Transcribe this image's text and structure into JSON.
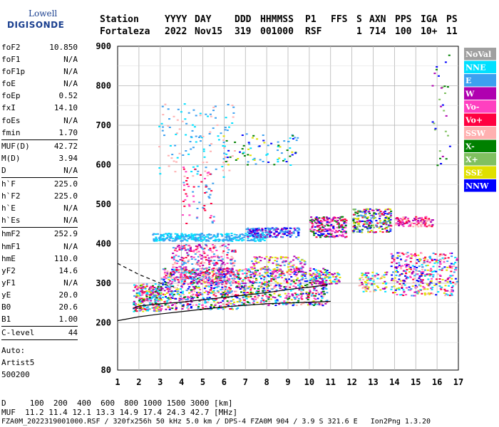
{
  "logo": {
    "line1": "Lowell",
    "line2": "DIGISONDE"
  },
  "header": {
    "labels": [
      "Station",
      "YYYY",
      "DAY",
      "DDD",
      "HHMMSS",
      "P1",
      "FFS",
      "S",
      "AXN",
      "PPS",
      "IGA",
      "PS"
    ],
    "values": [
      "Fortaleza",
      "2022",
      "Nov15",
      "319",
      "001000",
      "RSF",
      "",
      "1",
      "714",
      "100",
      "10+",
      "11"
    ]
  },
  "params": [
    [
      {
        "name": "foF2",
        "value": "10.850"
      },
      {
        "name": "foF1",
        "value": "N/A"
      },
      {
        "name": "foF1p",
        "value": "N/A"
      },
      {
        "name": "foE",
        "value": "N/A"
      },
      {
        "name": "foEp",
        "value": "0.52"
      },
      {
        "name": "fxI",
        "value": "14.10"
      },
      {
        "name": "foEs",
        "value": "N/A"
      },
      {
        "name": "fmin",
        "value": "1.70"
      }
    ],
    [
      {
        "name": "MUF(D)",
        "value": "42.72"
      },
      {
        "name": "M(D)",
        "value": "3.94"
      },
      {
        "name": "D",
        "value": "N/A"
      }
    ],
    [
      {
        "name": "h`F",
        "value": "225.0"
      },
      {
        "name": "h`F2",
        "value": "225.0"
      },
      {
        "name": "h`E",
        "value": "N/A"
      },
      {
        "name": "h`Es",
        "value": "N/A"
      }
    ],
    [
      {
        "name": "hmF2",
        "value": "252.9"
      },
      {
        "name": "hmF1",
        "value": "N/A"
      },
      {
        "name": "hmE",
        "value": "110.0"
      },
      {
        "name": "yF2",
        "value": "14.6"
      },
      {
        "name": "yF1",
        "value": "N/A"
      },
      {
        "name": "yE",
        "value": "20.0"
      },
      {
        "name": "B0",
        "value": "20.6"
      },
      {
        "name": "B1",
        "value": "1.00"
      }
    ],
    [
      {
        "name": "C-level",
        "value": "44"
      }
    ]
  ],
  "auto": [
    "Auto:",
    "Artist5",
    "500200"
  ],
  "footer": {
    "line1": "D     100  200  400  600  800 1000 1500 3000 [km]",
    "line2": "MUF  11.2 11.4 12.1 13.3 14.9 17.4 24.3 42.7 [MHz]",
    "line3": "FZA0M_2022319001000.RSF / 320fx256h 50 kHz 5.0 km / DPS-4 FZA0M 904 / 3.9 S 321.6 E   Ion2Png 1.3.20"
  },
  "chart_data": {
    "type": "scatter",
    "xlabel": "",
    "ylabel": "",
    "xlim": [
      1,
      17
    ],
    "ylim": [
      80,
      900
    ],
    "x_ticks": [
      1,
      2,
      3,
      4,
      5,
      6,
      7,
      8,
      9,
      10,
      11,
      12,
      13,
      14,
      15,
      16,
      17
    ],
    "y_ticks": [
      80,
      200,
      300,
      400,
      500,
      600,
      700,
      800,
      900
    ],
    "grid": true,
    "legend_position": "right",
    "legend": [
      {
        "name": "NoVal",
        "color": "#a0a0a0"
      },
      {
        "name": "NNE",
        "color": "#00e0ff"
      },
      {
        "name": "E",
        "color": "#3ca0f0"
      },
      {
        "name": "W",
        "color": "#b000b0"
      },
      {
        "name": "Vo-",
        "color": "#ff40c0"
      },
      {
        "name": "Vo+",
        "color": "#ff0040"
      },
      {
        "name": "SSW",
        "color": "#ffb0b0"
      },
      {
        "name": "X-",
        "color": "#008000"
      },
      {
        "name": "X+",
        "color": "#80c060"
      },
      {
        "name": "SSE",
        "color": "#e0e000"
      },
      {
        "name": "NNW",
        "color": "#0000ff"
      }
    ],
    "clusters": [
      {
        "x0": 1.7,
        "x1": 3.0,
        "y0": 230,
        "y1": 300,
        "n": 260,
        "colors": [
          5,
          4,
          3,
          1,
          9,
          7,
          2
        ]
      },
      {
        "x0": 3.0,
        "x1": 6.8,
        "y0": 235,
        "y1": 340,
        "n": 650,
        "colors": [
          5,
          4,
          3,
          6,
          1,
          9,
          7,
          2,
          10
        ]
      },
      {
        "x0": 3.5,
        "x1": 6.5,
        "y0": 300,
        "y1": 400,
        "n": 380,
        "colors": [
          3,
          4,
          6,
          5,
          2
        ]
      },
      {
        "x0": 6.8,
        "x1": 10.8,
        "y0": 245,
        "y1": 340,
        "n": 560,
        "colors": [
          5,
          4,
          3,
          9,
          6,
          1,
          7,
          10,
          2
        ]
      },
      {
        "x0": 7.2,
        "x1": 9.8,
        "y0": 320,
        "y1": 370,
        "n": 140,
        "colors": [
          3,
          4,
          2,
          9
        ]
      },
      {
        "x0": 2.6,
        "x1": 8.0,
        "y0": 408,
        "y1": 428,
        "n": 340,
        "colors": [
          2,
          1
        ]
      },
      {
        "x0": 7.0,
        "x1": 9.5,
        "y0": 418,
        "y1": 442,
        "n": 180,
        "colors": [
          10,
          2,
          3
        ]
      },
      {
        "x0": 10.0,
        "x1": 11.7,
        "y0": 418,
        "y1": 470,
        "n": 200,
        "colors": [
          10,
          3,
          4,
          7,
          5
        ]
      },
      {
        "x0": 12.0,
        "x1": 13.8,
        "y0": 430,
        "y1": 490,
        "n": 240,
        "colors": [
          7,
          8,
          3,
          10,
          9,
          5,
          2
        ]
      },
      {
        "x0": 14.0,
        "x1": 15.8,
        "y0": 445,
        "y1": 470,
        "n": 110,
        "colors": [
          6,
          4,
          5,
          3
        ]
      },
      {
        "x0": 13.8,
        "x1": 16.9,
        "y0": 270,
        "y1": 380,
        "n": 380,
        "colors": [
          3,
          10,
          1,
          5,
          6,
          2,
          4,
          9
        ]
      },
      {
        "x0": 10.0,
        "x1": 11.4,
        "y0": 300,
        "y1": 330,
        "n": 80,
        "colors": [
          9,
          1,
          3
        ]
      },
      {
        "x0": 12.3,
        "x1": 13.6,
        "y0": 280,
        "y1": 330,
        "n": 90,
        "colors": [
          9,
          6,
          1,
          3
        ]
      },
      {
        "x0": 2.9,
        "x1": 6.5,
        "y0": 570,
        "y1": 760,
        "n": 120,
        "colors": [
          2,
          6,
          1
        ]
      },
      {
        "x0": 5.9,
        "x1": 9.5,
        "y0": 600,
        "y1": 680,
        "n": 80,
        "colors": [
          2,
          1,
          10,
          7,
          9
        ]
      },
      {
        "x0": 15.7,
        "x1": 16.6,
        "y0": 600,
        "y1": 890,
        "n": 30,
        "colors": [
          7,
          8,
          10,
          3
        ]
      },
      {
        "x0": 4.0,
        "x1": 5.5,
        "y0": 450,
        "y1": 600,
        "n": 60,
        "colors": [
          2,
          4,
          5
        ]
      }
    ],
    "trace_x": [
      1.72,
      2.0,
      3.0,
      4.0,
      5.0,
      6.0,
      7.0,
      8.0,
      9.0,
      10.0,
      10.85
    ],
    "trace_y": [
      236,
      242,
      248,
      252,
      258,
      264,
      270,
      276,
      284,
      290,
      296
    ],
    "model_x": [
      1.0,
      2.0,
      3.0,
      4.0,
      5.0,
      6.0,
      7.0,
      8.0,
      9.0,
      10.0,
      11.0
    ],
    "model_y": [
      205,
      215,
      222,
      228,
      234,
      240,
      244,
      248,
      250,
      252,
      254
    ],
    "dashed_x": [
      1.0,
      2.0,
      3.0,
      3.8
    ],
    "dashed_y": [
      350,
      322,
      300,
      288
    ]
  }
}
